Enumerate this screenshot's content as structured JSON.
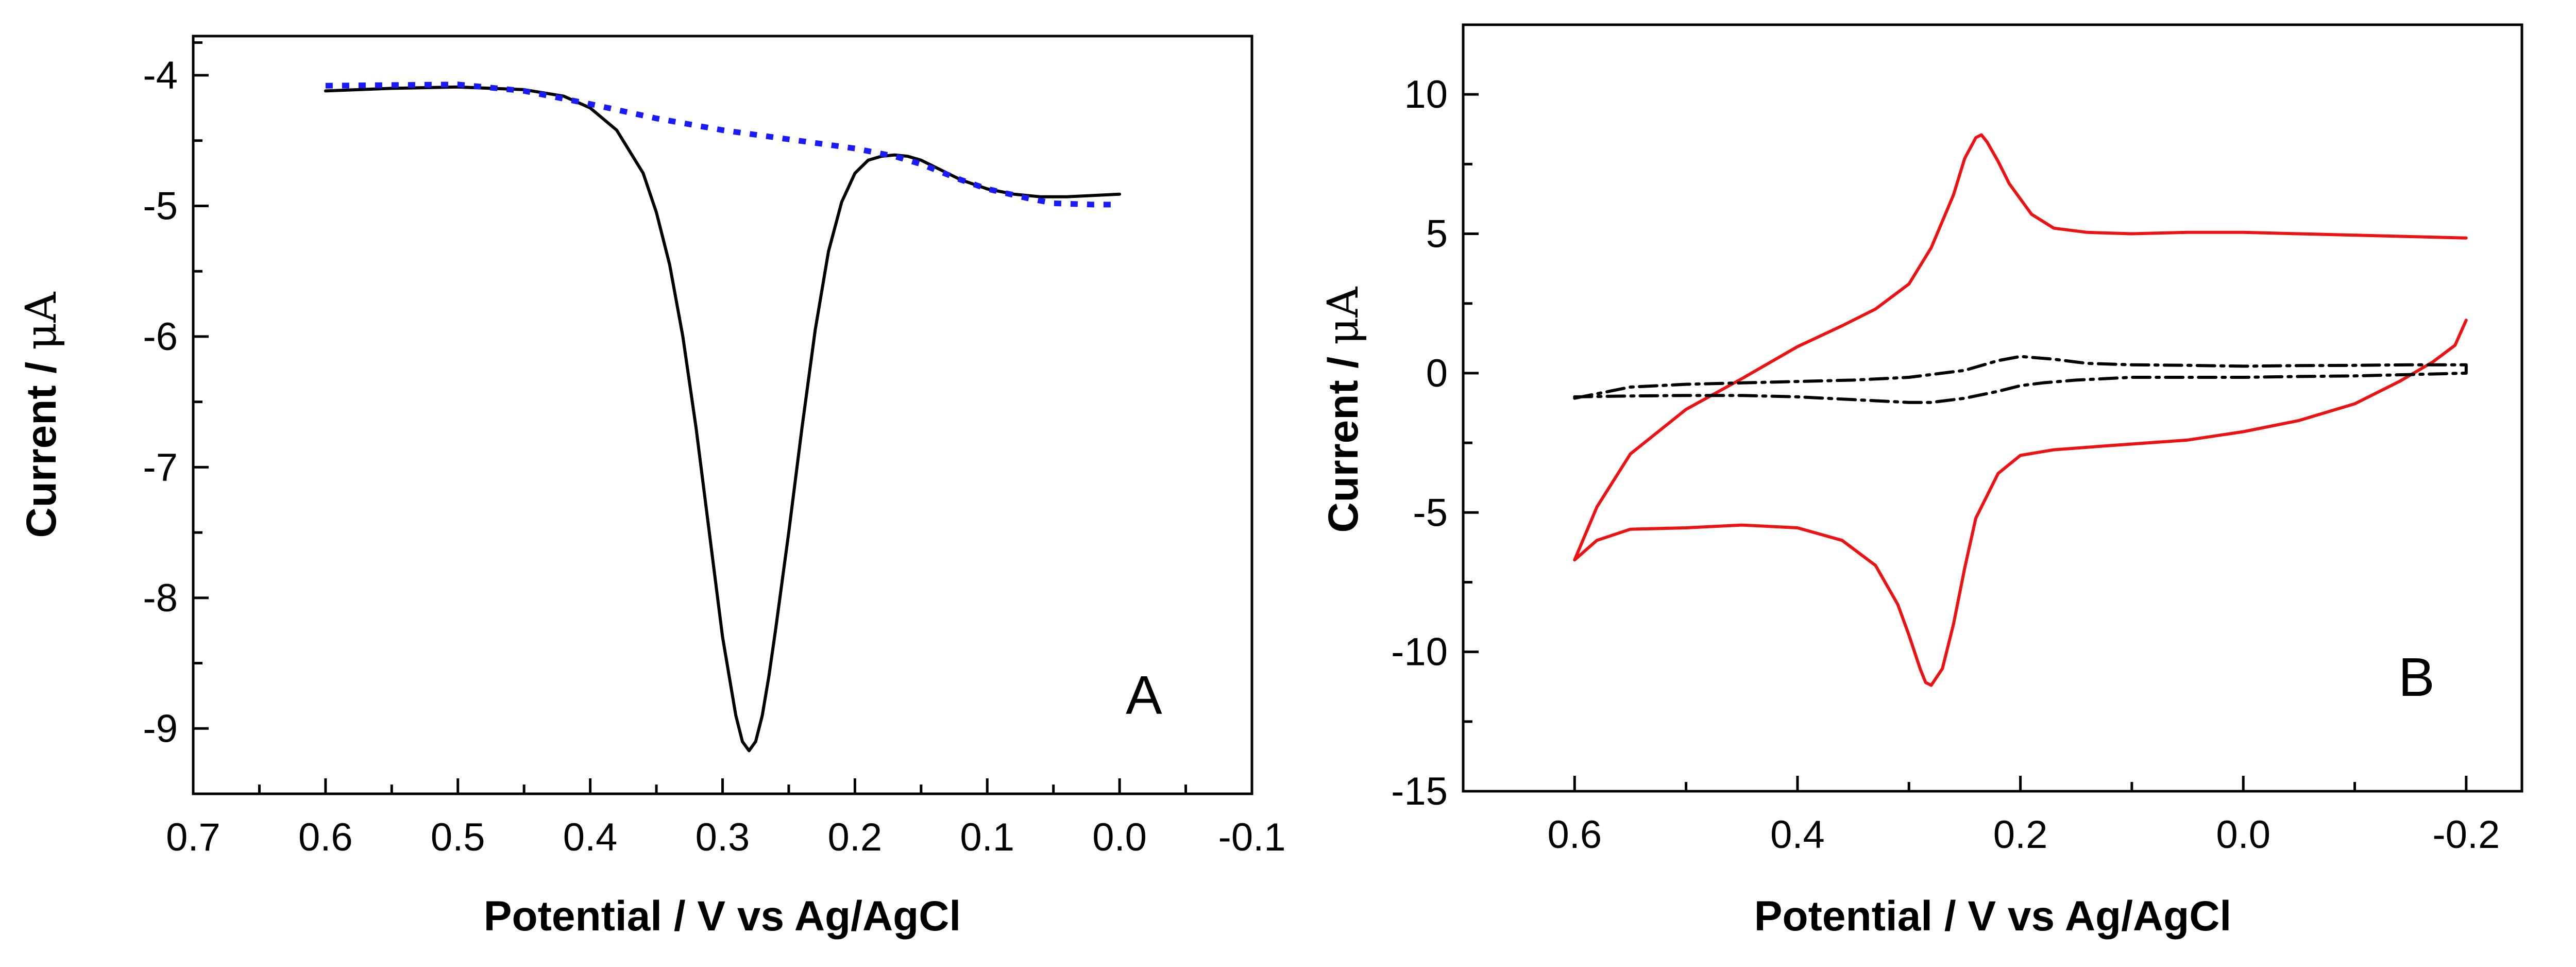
{
  "chart_data": [
    {
      "panel": "A",
      "type": "line",
      "title": "",
      "xlabel": "Potential / V vs Ag/AgCl",
      "ylabel_text": "Current / ",
      "ylabel_unit": "μA",
      "xlim": [
        0.7,
        -0.1
      ],
      "ylim": [
        -9.5,
        -3.7
      ],
      "x_ticks": [
        0.7,
        0.6,
        0.5,
        0.4,
        0.3,
        0.2,
        0.1,
        0.0,
        -0.1
      ],
      "x_tick_labels": [
        "0.7",
        "0.6",
        "0.5",
        "0.4",
        "0.3",
        "0.2",
        "0.1",
        "0.0",
        "-0.1"
      ],
      "y_ticks": [
        -4,
        -5,
        -6,
        -7,
        -8,
        -9
      ],
      "y_tick_labels": [
        "-4",
        "-5",
        "-6",
        "-7",
        "-8",
        "-9"
      ],
      "grid": false,
      "series": [
        {
          "color": "#000000",
          "style": "solid",
          "x": [
            0.6,
            0.55,
            0.5,
            0.45,
            0.42,
            0.4,
            0.38,
            0.36,
            0.35,
            0.34,
            0.33,
            0.32,
            0.31,
            0.3,
            0.29,
            0.285,
            0.28,
            0.275,
            0.27,
            0.265,
            0.26,
            0.25,
            0.24,
            0.23,
            0.22,
            0.21,
            0.2,
            0.19,
            0.18,
            0.17,
            0.16,
            0.15,
            0.14,
            0.12,
            0.1,
            0.08,
            0.06,
            0.04,
            0.02,
            0.0
          ],
          "y": [
            -4.12,
            -4.1,
            -4.09,
            -4.11,
            -4.16,
            -4.25,
            -4.42,
            -4.75,
            -5.05,
            -5.45,
            -6.0,
            -6.7,
            -7.5,
            -8.3,
            -8.9,
            -9.1,
            -9.17,
            -9.1,
            -8.9,
            -8.6,
            -8.25,
            -7.5,
            -6.7,
            -5.95,
            -5.35,
            -4.97,
            -4.75,
            -4.65,
            -4.62,
            -4.61,
            -4.62,
            -4.65,
            -4.7,
            -4.8,
            -4.87,
            -4.91,
            -4.93,
            -4.93,
            -4.92,
            -4.91
          ]
        },
        {
          "color": "#1a1aff",
          "style": "dotted",
          "x": [
            0.6,
            0.5,
            0.45,
            0.4,
            0.35,
            0.3,
            0.25,
            0.2,
            0.17,
            0.15,
            0.12,
            0.1,
            0.07,
            0.05,
            0.02,
            0.0
          ],
          "y": [
            -4.08,
            -4.07,
            -4.12,
            -4.22,
            -4.33,
            -4.42,
            -4.49,
            -4.56,
            -4.62,
            -4.68,
            -4.8,
            -4.87,
            -4.94,
            -4.98,
            -4.99,
            -4.99
          ]
        }
      ]
    },
    {
      "panel": "B",
      "type": "line",
      "title": "",
      "xlabel": "Potential / V vs Ag/AgCl",
      "ylabel_text": "Current / ",
      "ylabel_unit": "μA",
      "xlim": [
        0.7,
        -0.25
      ],
      "ylim": [
        -15,
        12.5
      ],
      "x_ticks": [
        0.6,
        0.4,
        0.2,
        0.0,
        -0.2
      ],
      "x_tick_labels": [
        "0.6",
        "0.4",
        "0.2",
        "0.0",
        "-0.2"
      ],
      "x_minor_ticks": [
        0.5,
        0.3,
        0.1,
        -0.1
      ],
      "y_ticks": [
        10,
        5,
        0,
        -5,
        -10,
        -15
      ],
      "y_tick_labels": [
        "10",
        "5",
        "0",
        "-5",
        "-10",
        "-15"
      ],
      "grid": false,
      "series": [
        {
          "color": "#ee1111",
          "style": "solid",
          "x": [
            -0.2,
            -0.15,
            -0.1,
            -0.05,
            0.0,
            0.05,
            0.1,
            0.14,
            0.17,
            0.19,
            0.21,
            0.22,
            0.23,
            0.235,
            0.24,
            0.25,
            0.26,
            0.28,
            0.3,
            0.33,
            0.36,
            0.4,
            0.45,
            0.5,
            0.55,
            0.58,
            0.6,
            0.6,
            0.58,
            0.55,
            0.5,
            0.45,
            0.4,
            0.36,
            0.33,
            0.31,
            0.3,
            0.29,
            0.285,
            0.28,
            0.27,
            0.26,
            0.25,
            0.24,
            0.22,
            0.2,
            0.17,
            0.12,
            0.05,
            0.0,
            -0.05,
            -0.1,
            -0.14,
            -0.17,
            -0.19,
            -0.2
          ],
          "y": [
            4.85,
            4.9,
            4.95,
            5.0,
            5.05,
            5.05,
            5.0,
            5.05,
            5.2,
            5.7,
            6.8,
            7.6,
            8.3,
            8.55,
            8.45,
            7.7,
            6.4,
            4.5,
            3.2,
            2.3,
            1.7,
            0.95,
            -0.2,
            -1.3,
            -2.9,
            -4.8,
            -6.7,
            -6.7,
            -6.0,
            -5.6,
            -5.55,
            -5.45,
            -5.55,
            -6.0,
            -6.9,
            -8.3,
            -9.4,
            -10.6,
            -11.1,
            -11.2,
            -10.6,
            -9.0,
            -7.0,
            -5.2,
            -3.6,
            -2.95,
            -2.75,
            -2.6,
            -2.4,
            -2.1,
            -1.7,
            -1.1,
            -0.3,
            0.4,
            1.0,
            1.9
          ]
        },
        {
          "color": "#000000",
          "style": "dashdot",
          "x": [
            0.6,
            0.55,
            0.5,
            0.45,
            0.4,
            0.35,
            0.3,
            0.25,
            0.22,
            0.2,
            0.17,
            0.14,
            0.1,
            0.05,
            0.0,
            -0.05,
            -0.1,
            -0.15,
            -0.2,
            -0.2,
            -0.15,
            -0.1,
            -0.05,
            0.0,
            0.05,
            0.1,
            0.15,
            0.18,
            0.2,
            0.22,
            0.25,
            0.28,
            0.3,
            0.35,
            0.4,
            0.45,
            0.5,
            0.55,
            0.6
          ],
          "y": [
            -0.9,
            -0.5,
            -0.4,
            -0.35,
            -0.3,
            -0.25,
            -0.15,
            0.1,
            0.45,
            0.6,
            0.5,
            0.35,
            0.3,
            0.28,
            0.25,
            0.27,
            0.28,
            0.3,
            0.3,
            0.0,
            -0.05,
            -0.1,
            -0.12,
            -0.15,
            -0.15,
            -0.15,
            -0.25,
            -0.35,
            -0.45,
            -0.65,
            -0.9,
            -1.05,
            -1.05,
            -0.95,
            -0.85,
            -0.8,
            -0.8,
            -0.82,
            -0.85
          ]
        }
      ]
    }
  ]
}
